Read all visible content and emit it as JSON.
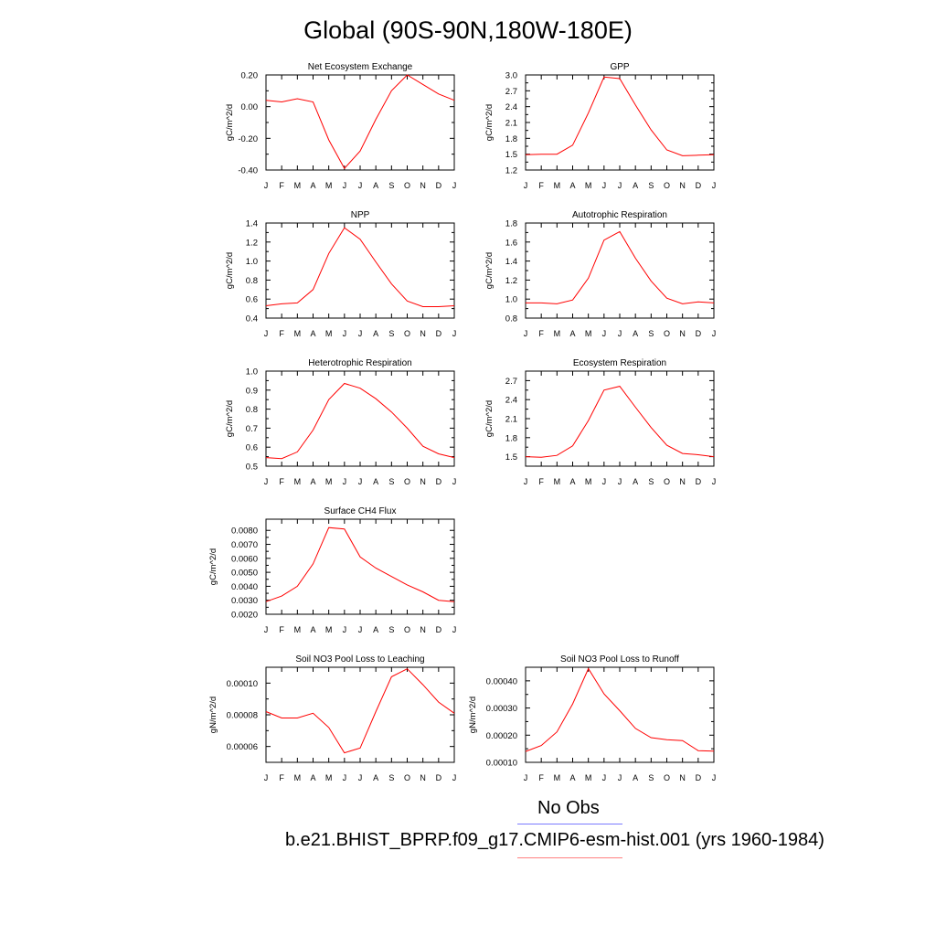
{
  "title": "Global (90S-90N,180W-180E)",
  "months": [
    "J",
    "F",
    "M",
    "A",
    "M",
    "J",
    "J",
    "A",
    "S",
    "O",
    "N",
    "D",
    "J"
  ],
  "series_color": "#ff0000",
  "legend": {
    "obs_label": "No Obs",
    "obs_color": "#7b7bff",
    "model_label": "b.e21.BHIST_BPRP.f09_g17.CMIP6-esm-hist.001 (yrs 1960-1984)",
    "model_color": "#ff8080"
  },
  "chart_data": [
    {
      "type": "line",
      "title": "Net Ecosystem Exchange",
      "ylabel": "gC/m^2/d",
      "ylim": [
        -0.4,
        0.2
      ],
      "yticks": [
        -0.4,
        -0.2,
        0.0,
        0.2
      ],
      "ytick_labels": [
        "-0.40",
        "-0.20",
        "0.00",
        "0.20"
      ],
      "x": [
        "J",
        "F",
        "M",
        "A",
        "M",
        "J",
        "J",
        "A",
        "S",
        "O",
        "N",
        "D",
        "J"
      ],
      "values": [
        0.04,
        0.03,
        0.05,
        0.03,
        -0.21,
        -0.39,
        -0.28,
        -0.08,
        0.1,
        0.2,
        0.14,
        0.08,
        0.04
      ]
    },
    {
      "type": "line",
      "title": "GPP",
      "ylabel": "gC/m^2/d",
      "ylim": [
        1.2,
        3.0
      ],
      "yticks": [
        1.2,
        1.5,
        1.8,
        2.1,
        2.4,
        2.7,
        3.0
      ],
      "ytick_labels": [
        "1.2",
        "1.5",
        "1.8",
        "2.1",
        "2.4",
        "2.7",
        "3.0"
      ],
      "x": [
        "J",
        "F",
        "M",
        "A",
        "M",
        "J",
        "J",
        "A",
        "S",
        "O",
        "N",
        "D",
        "J"
      ],
      "values": [
        1.49,
        1.5,
        1.5,
        1.67,
        2.28,
        2.96,
        2.93,
        2.43,
        1.96,
        1.58,
        1.47,
        1.48,
        1.49
      ]
    },
    {
      "type": "line",
      "title": "NPP",
      "ylabel": "gC/m^2/d",
      "ylim": [
        0.4,
        1.4
      ],
      "yticks": [
        0.4,
        0.6,
        0.8,
        1.0,
        1.2,
        1.4
      ],
      "ytick_labels": [
        "0.4",
        "0.6",
        "0.8",
        "1.0",
        "1.2",
        "1.4"
      ],
      "x": [
        "J",
        "F",
        "M",
        "A",
        "M",
        "J",
        "J",
        "A",
        "S",
        "O",
        "N",
        "D",
        "J"
      ],
      "values": [
        0.53,
        0.55,
        0.56,
        0.7,
        1.08,
        1.35,
        1.23,
        0.99,
        0.76,
        0.58,
        0.52,
        0.52,
        0.53
      ]
    },
    {
      "type": "line",
      "title": "Autotrophic Respiration",
      "ylabel": "gC/m^2/d",
      "ylim": [
        0.8,
        1.8
      ],
      "yticks": [
        0.8,
        1.0,
        1.2,
        1.4,
        1.6,
        1.8
      ],
      "ytick_labels": [
        "0.8",
        "1.0",
        "1.2",
        "1.4",
        "1.6",
        "1.8"
      ],
      "x": [
        "J",
        "F",
        "M",
        "A",
        "M",
        "J",
        "J",
        "A",
        "S",
        "O",
        "N",
        "D",
        "J"
      ],
      "values": [
        0.96,
        0.96,
        0.95,
        0.99,
        1.22,
        1.62,
        1.71,
        1.43,
        1.19,
        1.01,
        0.95,
        0.97,
        0.96
      ]
    },
    {
      "type": "line",
      "title": "Heterotrophic Respiration",
      "ylabel": "gC/m^2/d",
      "ylim": [
        0.5,
        1.0
      ],
      "yticks": [
        0.5,
        0.6,
        0.7,
        0.8,
        0.9,
        1.0
      ],
      "ytick_labels": [
        "0.5",
        "0.6",
        "0.7",
        "0.8",
        "0.9",
        "1.0"
      ],
      "x": [
        "J",
        "F",
        "M",
        "A",
        "M",
        "J",
        "J",
        "A",
        "S",
        "O",
        "N",
        "D",
        "J"
      ],
      "values": [
        0.545,
        0.54,
        0.575,
        0.69,
        0.85,
        0.935,
        0.91,
        0.855,
        0.785,
        0.7,
        0.605,
        0.565,
        0.545
      ]
    },
    {
      "type": "line",
      "title": "Ecosystem Respiration",
      "ylabel": "gC/m^2/d",
      "ylim": [
        1.35,
        2.85
      ],
      "yticks": [
        1.5,
        1.8,
        2.1,
        2.4,
        2.7
      ],
      "ytick_labels": [
        "1.5",
        "1.8",
        "2.1",
        "2.4",
        "2.7"
      ],
      "x": [
        "J",
        "F",
        "M",
        "A",
        "M",
        "J",
        "J",
        "A",
        "S",
        "O",
        "N",
        "D",
        "J"
      ],
      "values": [
        1.5,
        1.49,
        1.52,
        1.67,
        2.07,
        2.55,
        2.61,
        2.28,
        1.96,
        1.68,
        1.55,
        1.53,
        1.5
      ]
    },
    {
      "type": "line",
      "title": "Surface CH4 Flux",
      "ylabel": "gC/m^2/d",
      "ylim": [
        0.002,
        0.0088
      ],
      "yticks": [
        0.002,
        0.003,
        0.004,
        0.005,
        0.006,
        0.007,
        0.008
      ],
      "ytick_labels": [
        "0.0020",
        "0.0030",
        "0.0040",
        "0.0050",
        "0.0060",
        "0.0070",
        "0.0080"
      ],
      "x": [
        "J",
        "F",
        "M",
        "A",
        "M",
        "J",
        "J",
        "A",
        "S",
        "O",
        "N",
        "D",
        "J"
      ],
      "values": [
        0.0029,
        0.0033,
        0.004,
        0.0056,
        0.0082,
        0.0081,
        0.0061,
        0.0053,
        0.0047,
        0.0041,
        0.0036,
        0.003,
        0.0029
      ]
    },
    {
      "type": "line",
      "title": "Soil NO3 Pool Loss to Leaching",
      "ylabel": "gN/m^2/d",
      "ylim": [
        5e-05,
        0.00011
      ],
      "yticks": [
        6e-05,
        8e-05,
        0.0001
      ],
      "ytick_labels": [
        "0.00006",
        "0.00008",
        "0.00010"
      ],
      "x": [
        "J",
        "F",
        "M",
        "A",
        "M",
        "J",
        "J",
        "A",
        "S",
        "O",
        "N",
        "D",
        "J"
      ],
      "values": [
        8.2e-05,
        7.8e-05,
        7.8e-05,
        8.1e-05,
        7.2e-05,
        5.6e-05,
        5.9e-05,
        8.2e-05,
        0.000104,
        0.000109,
        9.9e-05,
        8.8e-05,
        8.1e-05
      ]
    },
    {
      "type": "line",
      "title": "Soil NO3 Pool Loss to Runoff",
      "ylabel": "gN/m^2/d",
      "ylim": [
        0.0001,
        0.00045
      ],
      "yticks": [
        0.0001,
        0.0002,
        0.0003,
        0.0004
      ],
      "ytick_labels": [
        "0.00010",
        "0.00020",
        "0.00030",
        "0.00040"
      ],
      "x": [
        "J",
        "F",
        "M",
        "A",
        "M",
        "J",
        "J",
        "A",
        "S",
        "O",
        "N",
        "D",
        "J"
      ],
      "values": [
        0.00014,
        0.000162,
        0.000212,
        0.000315,
        0.000445,
        0.000352,
        0.00029,
        0.000225,
        0.000191,
        0.000183,
        0.00018,
        0.000143,
        0.000141
      ]
    }
  ]
}
